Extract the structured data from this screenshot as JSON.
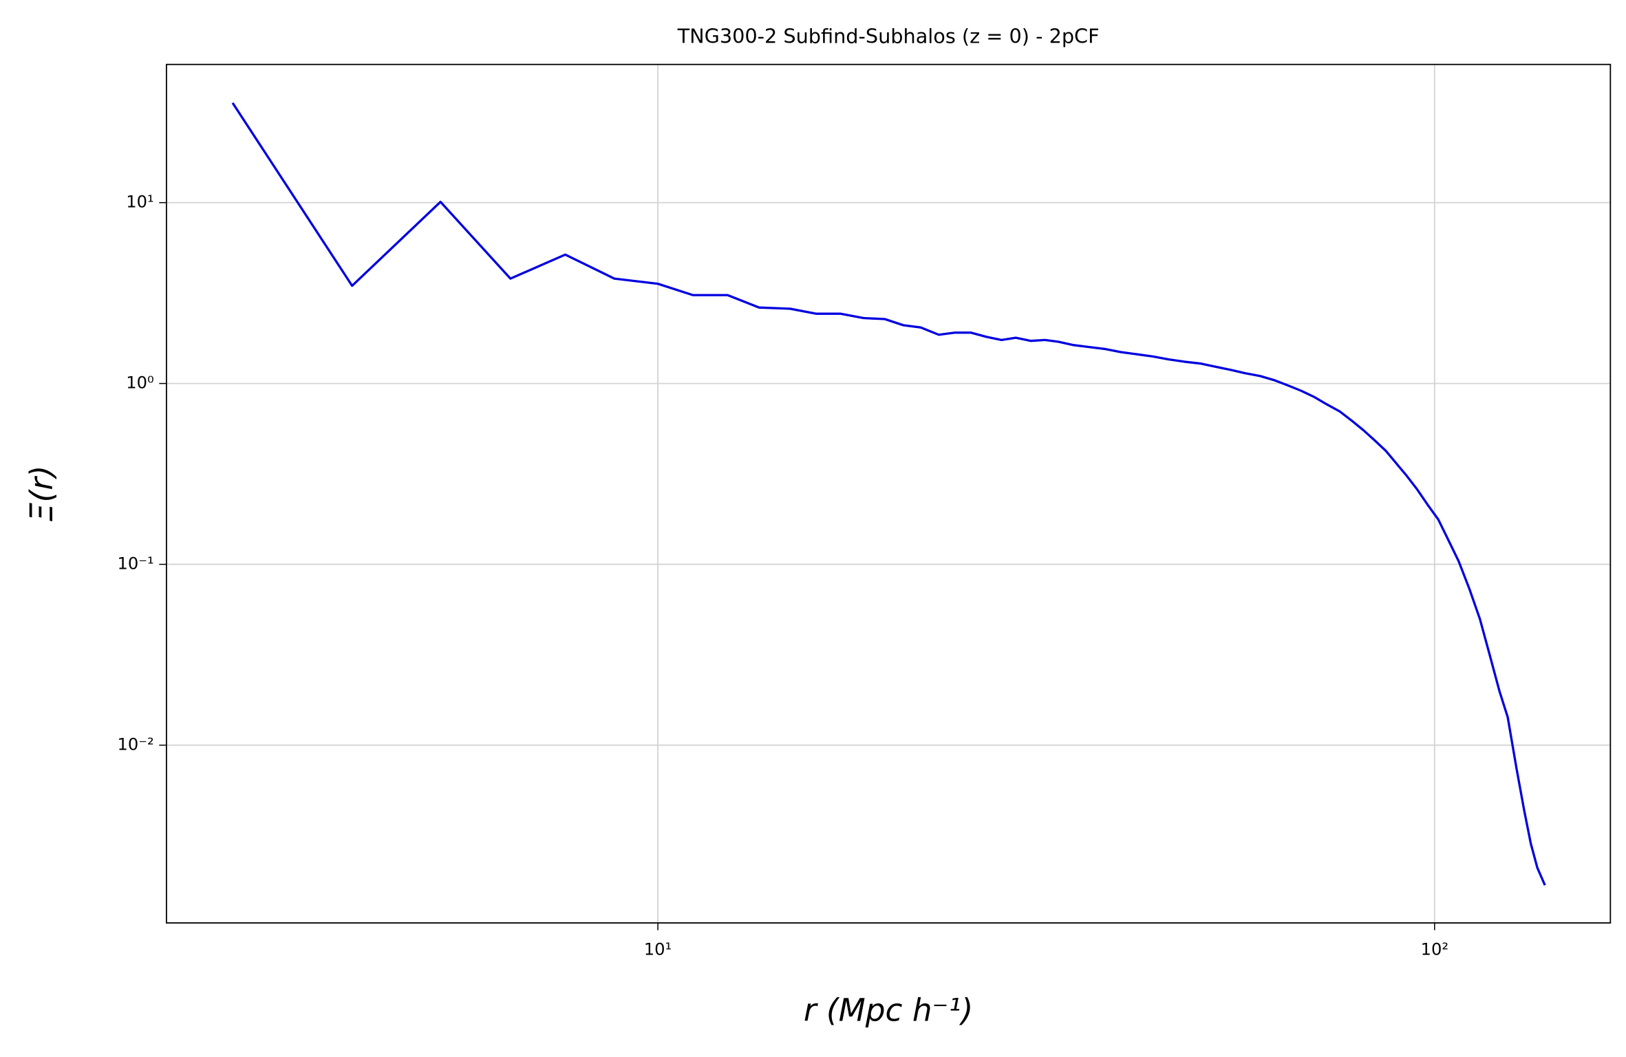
{
  "chart_data": {
    "type": "line",
    "title": "TNG300-2 Subfind-Subhalos (z = 0) - 2pCF",
    "xlabel": "r (Mpc h⁻¹)",
    "ylabel": "Ξ(r)",
    "xscale": "log",
    "yscale": "log",
    "grid": true,
    "xlim": [
      2.33,
      168.4
    ],
    "ylim": [
      0.00104,
      58.1
    ],
    "xticks": [
      {
        "value": 10,
        "label": "10¹"
      },
      {
        "value": 100,
        "label": "10²"
      }
    ],
    "yticks": [
      {
        "value": 0.01,
        "label": "10⁻²"
      },
      {
        "value": 0.1,
        "label": "10⁻¹"
      },
      {
        "value": 1,
        "label": "10⁰"
      },
      {
        "value": 10,
        "label": "10¹"
      }
    ],
    "series": [
      {
        "name": "2pCF",
        "color": "#0000e0",
        "x": [
          2.835,
          4.04,
          5.25,
          6.46,
          7.6,
          8.79,
          10,
          11.1,
          12.3,
          13.5,
          14.8,
          16.0,
          17.2,
          18.4,
          19.6,
          20.7,
          21.8,
          23.0,
          24.1,
          25.3,
          26.5,
          27.7,
          28.9,
          30.2,
          31.5,
          32.8,
          34.3,
          35.9,
          37.7,
          39.5,
          41.4,
          43.4,
          45.4,
          47.6,
          49.9,
          52.1,
          54.6,
          57.0,
          59.6,
          62.3,
          64.8,
          67.3,
          70.0,
          72.6,
          75.5,
          78.3,
          81.0,
          83.8,
          86.6,
          89.3,
          92.1,
          95.0,
          98.0,
          101.1,
          104.1,
          107.4,
          110.9,
          114.4,
          118.0,
          121.2,
          124.2,
          127.5,
          130.4,
          133.0,
          135.6,
          138.7
        ],
        "values": [
          35.6,
          3.47,
          10.1,
          3.8,
          5.16,
          3.8,
          3.56,
          3.08,
          3.08,
          2.63,
          2.59,
          2.43,
          2.43,
          2.3,
          2.27,
          2.1,
          2.04,
          1.86,
          1.91,
          1.91,
          1.81,
          1.74,
          1.79,
          1.72,
          1.74,
          1.7,
          1.63,
          1.59,
          1.55,
          1.49,
          1.45,
          1.41,
          1.36,
          1.32,
          1.29,
          1.24,
          1.19,
          1.14,
          1.1,
          1.04,
          0.974,
          0.912,
          0.842,
          0.768,
          0.7,
          0.621,
          0.551,
          0.483,
          0.423,
          0.361,
          0.308,
          0.259,
          0.213,
          0.177,
          0.137,
          0.104,
          0.0729,
          0.0497,
          0.0305,
          0.0199,
          0.0143,
          0.00742,
          0.00437,
          0.00286,
          0.0021,
          0.00168
        ]
      }
    ]
  }
}
